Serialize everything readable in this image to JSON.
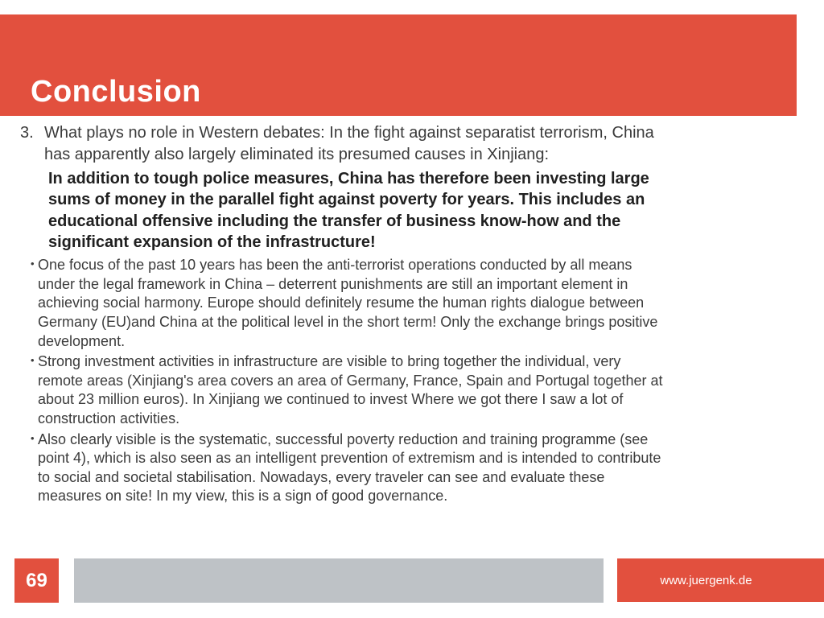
{
  "slide": {
    "title": "Conclusion",
    "accent_color": "#E2503E",
    "gray_color": "#BEC2C6",
    "numbered_item": {
      "number": "3.",
      "text": "What plays no role in Western debates: In the fight against separatist terrorism, China\nhas apparently also largely eliminated its presumed causes in Xinjiang:"
    },
    "emphasis_text": "In addition to tough police measures, China has therefore been investing large\nsums of money in the parallel fight against poverty for years. This includes an\neducational offensive including the transfer of business know-how and the\nsignificant expansion of the infrastructure!",
    "bullet_glyph": "•",
    "bullets": [
      "One focus of the past 10 years has been the anti-terrorist operations conducted by all means\nunder the legal framework in China – deterrent punishments are still an important element in\nachieving social harmony. Europe should definitely resume the human rights dialogue between\nGermany (EU)and China at the political level in the short term! Only the exchange brings positive\ndevelopment.",
      "Strong investment activities in infrastructure are visible to bring together the individual, very\nremote areas (Xinjiang's area covers an area of Germany, France, Spain and Portugal together at\nabout 23 million euros). In Xinjiang we continued to invest Where we got there I saw a lot of\nconstruction activities.",
      "Also clearly visible is the systematic, successful poverty reduction and training programme (see\npoint 4), which is also seen as an intelligent prevention of extremism and is intended to contribute\nto social and societal stabilisation. Nowadays, every traveler can see and evaluate these\nmeasures on site! In my view, this is a sign of good governance."
    ]
  },
  "footer": {
    "page_number": "69",
    "website": "www.juergenk.de"
  }
}
